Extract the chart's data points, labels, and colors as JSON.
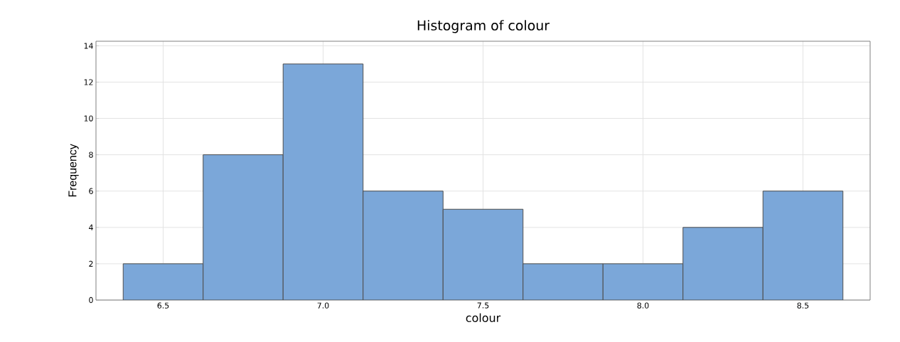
{
  "chart_data": {
    "type": "histogram",
    "title": "Histogram of colour",
    "xlabel": "colour",
    "ylabel": "Frequency",
    "bins": [
      6.375,
      6.625,
      6.875,
      7.125,
      7.375,
      7.625,
      7.875,
      8.125,
      8.375,
      8.625
    ],
    "values": [
      2,
      8,
      13,
      6,
      5,
      2,
      2,
      4,
      6
    ],
    "color": "#7ba7d9",
    "xlim": [
      6.29,
      8.71
    ],
    "xticks": [
      {
        "value": 6.5,
        "label": "6.5"
      },
      {
        "value": 7.0,
        "label": "7.0"
      },
      {
        "value": 7.5,
        "label": "7.5"
      },
      {
        "value": 8.0,
        "label": "8.0"
      },
      {
        "value": 8.5,
        "label": "8.5"
      }
    ],
    "ylim": [
      0,
      14.25
    ],
    "yticks": [
      0,
      2,
      4,
      6,
      8,
      10,
      12,
      14
    ],
    "grid": true
  }
}
